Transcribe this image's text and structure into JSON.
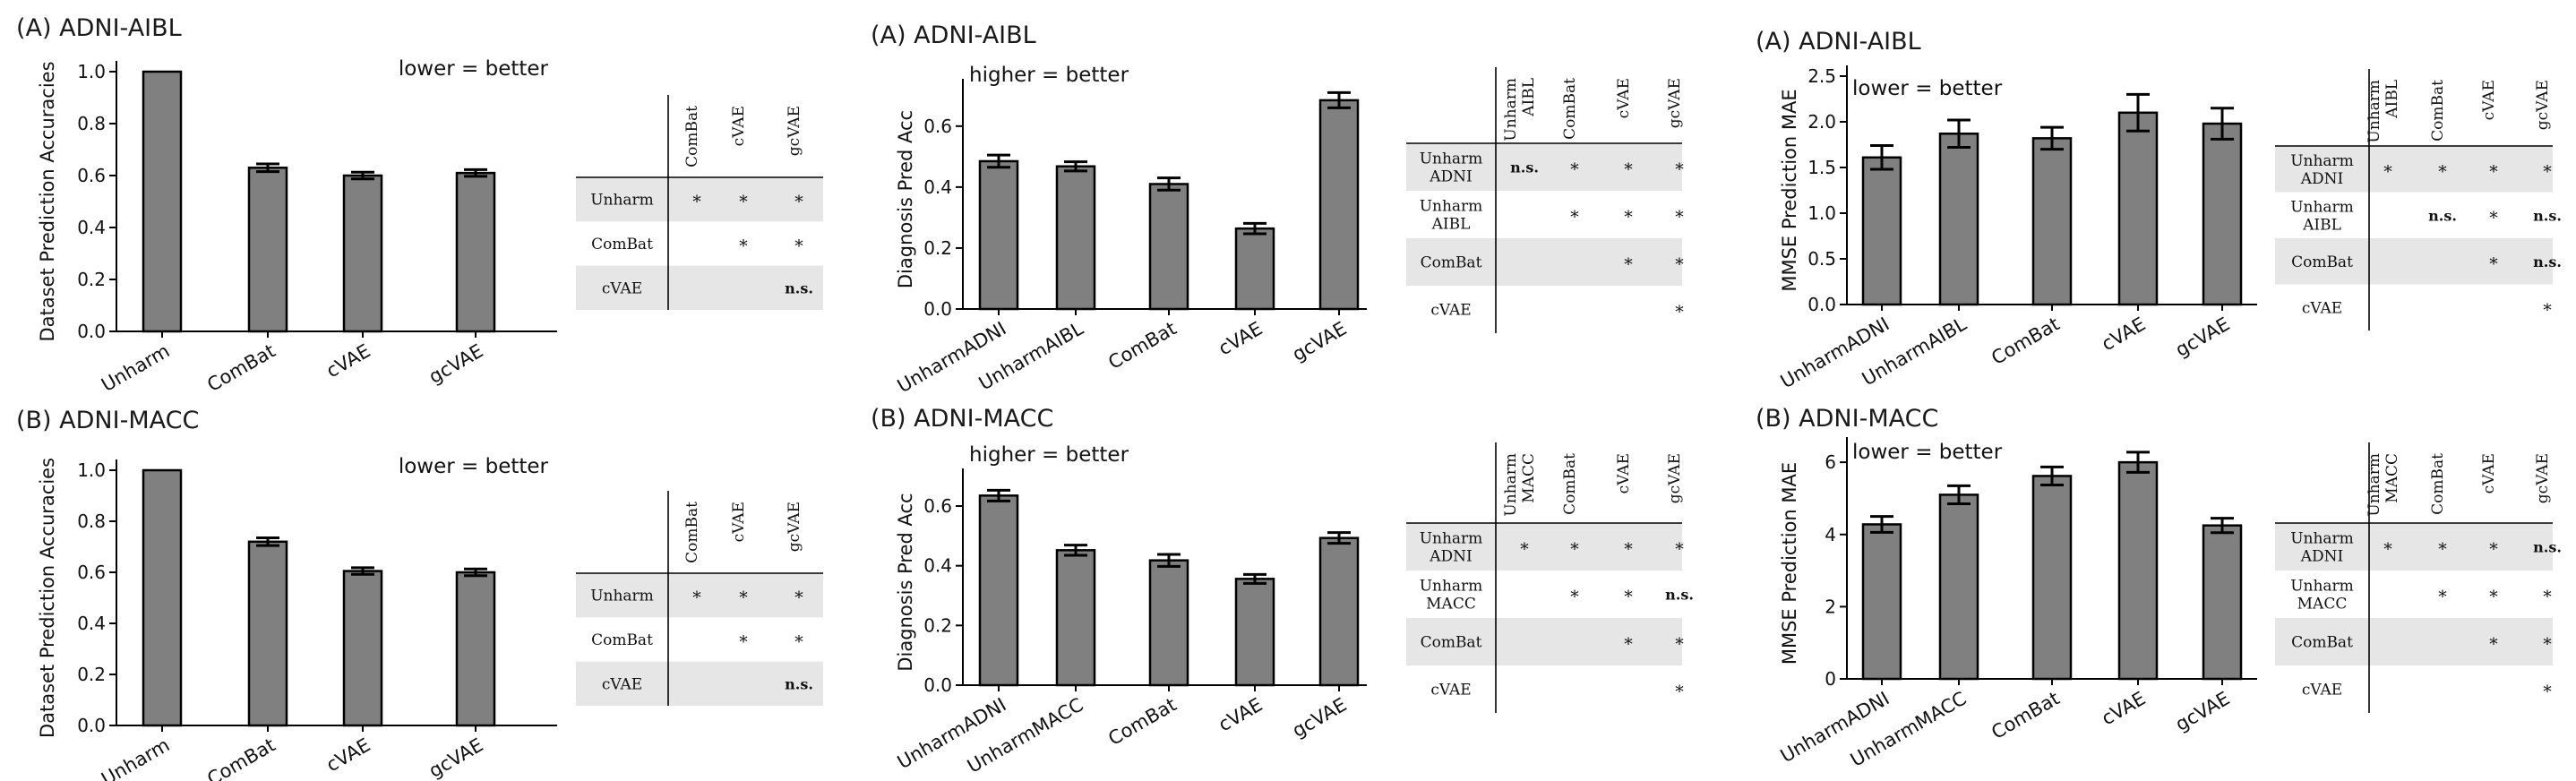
{
  "figure": {
    "background": "#ffffff",
    "bar_color": "#808080",
    "shade_color": "#e6e6e6"
  },
  "chart_data": [
    {
      "type": "bar",
      "title": "(A) ADNI-AIBL",
      "note": "lower = better",
      "ylabel": "Dataset Prediction Accuracies",
      "xlabel": "",
      "ylim": [
        0,
        1.0
      ],
      "yticks": [
        0.0,
        0.2,
        0.4,
        0.6,
        0.8,
        1.0
      ],
      "ytick_labels": [
        "0.0",
        "0.2",
        "0.4",
        "0.6",
        "0.8",
        "1.0"
      ],
      "categories": [
        "Unharm",
        "ComBat",
        "cVAE",
        "gcVAE"
      ],
      "values": [
        1.0,
        0.63,
        0.6,
        0.61
      ],
      "errors": [
        0,
        0.015,
        0.013,
        0.013
      ],
      "table": {
        "columns": [
          "ComBat",
          "cVAE",
          "gcVAE"
        ],
        "rows": [
          {
            "label": [
              "Unharm"
            ],
            "cells": [
              "*",
              "*",
              "*"
            ]
          },
          {
            "label": [
              "ComBat"
            ],
            "cells": [
              "",
              "*",
              "*"
            ]
          },
          {
            "label": [
              "cVAE"
            ],
            "cells": [
              "",
              "",
              "n.s."
            ]
          }
        ]
      }
    },
    {
      "type": "bar",
      "title": "(A) ADNI-AIBL",
      "note": "higher = better",
      "ylabel": "Diagnosis Pred Acc",
      "xlabel": "",
      "ylim": [
        0,
        0.72
      ],
      "yticks": [
        0.0,
        0.2,
        0.4,
        0.6
      ],
      "ytick_labels": [
        "0.0",
        "0.2",
        "0.4",
        "0.6"
      ],
      "categories": [
        "UnharmADNI",
        "UnharmAIBL",
        "ComBat",
        "cVAE",
        "gcVAE"
      ],
      "values": [
        0.485,
        0.468,
        0.41,
        0.264,
        0.685
      ],
      "errors": [
        0.02,
        0.015,
        0.02,
        0.017,
        0.025
      ],
      "table": {
        "columns": [
          "Unharm\nAIBL",
          "ComBat",
          "cVAE",
          "gcVAE"
        ],
        "rows": [
          {
            "label": [
              "Unharm",
              "ADNI"
            ],
            "cells": [
              "n.s.",
              "*",
              "*",
              "*"
            ]
          },
          {
            "label": [
              "Unharm",
              "AIBL"
            ],
            "cells": [
              "",
              "*",
              "*",
              "*"
            ]
          },
          {
            "label": [
              "ComBat"
            ],
            "cells": [
              "",
              "",
              "*",
              "*"
            ]
          },
          {
            "label": [
              "cVAE"
            ],
            "cells": [
              "",
              "",
              "",
              "*"
            ]
          }
        ]
      }
    },
    {
      "type": "bar",
      "title": "(A) ADNI-AIBL",
      "note": "lower = better",
      "ylabel": "MMSE Prediction MAE",
      "xlabel": "",
      "ylim": [
        0,
        2.5
      ],
      "yticks": [
        0.0,
        0.5,
        1.0,
        1.5,
        2.0,
        2.5
      ],
      "ytick_labels": [
        "0.0",
        "0.5",
        "1.0",
        "1.5",
        "2.0",
        "2.5"
      ],
      "categories": [
        "UnharmADNI",
        "UnharmAIBL",
        "ComBat",
        "cVAE",
        "gcVAE"
      ],
      "values": [
        1.61,
        1.87,
        1.82,
        2.1,
        1.98
      ],
      "errors": [
        0.13,
        0.15,
        0.12,
        0.2,
        0.17
      ],
      "table": {
        "columns": [
          "Unharm\nAIBL",
          "ComBat",
          "cVAE",
          "gcVAE"
        ],
        "rows": [
          {
            "label": [
              "Unharm",
              "ADNI"
            ],
            "cells": [
              "*",
              "*",
              "*",
              "*"
            ]
          },
          {
            "label": [
              "Unharm",
              "AIBL"
            ],
            "cells": [
              "",
              "n.s.",
              "*",
              "n.s."
            ]
          },
          {
            "label": [
              "ComBat"
            ],
            "cells": [
              "",
              "",
              "*",
              "n.s."
            ]
          },
          {
            "label": [
              "cVAE"
            ],
            "cells": [
              "",
              "",
              "",
              "*"
            ]
          }
        ]
      }
    },
    {
      "type": "bar",
      "title": "(B) ADNI-MACC",
      "note": "lower = better",
      "ylabel": "Dataset Prediction Accuracies",
      "xlabel": "",
      "ylim": [
        0,
        1.0
      ],
      "yticks": [
        0.0,
        0.2,
        0.4,
        0.6,
        0.8,
        1.0
      ],
      "ytick_labels": [
        "0.0",
        "0.2",
        "0.4",
        "0.6",
        "0.8",
        "1.0"
      ],
      "categories": [
        "Unharm",
        "ComBat",
        "cVAE",
        "gcVAE"
      ],
      "values": [
        1.0,
        0.72,
        0.605,
        0.6
      ],
      "errors": [
        0,
        0.015,
        0.013,
        0.013
      ],
      "table": {
        "columns": [
          "ComBat",
          "cVAE",
          "gcVAE"
        ],
        "rows": [
          {
            "label": [
              "Unharm"
            ],
            "cells": [
              "*",
              "*",
              "*"
            ]
          },
          {
            "label": [
              "ComBat"
            ],
            "cells": [
              "",
              "*",
              "*"
            ]
          },
          {
            "label": [
              "cVAE"
            ],
            "cells": [
              "",
              "",
              "n.s."
            ]
          }
        ]
      }
    },
    {
      "type": "bar",
      "title": "(B) ADNI-MACC",
      "note": "higher = better",
      "ylabel": "Diagnosis Pred Acc",
      "xlabel": "",
      "ylim": [
        0,
        0.69
      ],
      "yticks": [
        0.0,
        0.2,
        0.4,
        0.6
      ],
      "ytick_labels": [
        "0.0",
        "0.2",
        "0.4",
        "0.6"
      ],
      "categories": [
        "UnharmADNI",
        "UnharmMACC",
        "ComBat",
        "cVAE",
        "gcVAE"
      ],
      "values": [
        0.635,
        0.452,
        0.418,
        0.356,
        0.493
      ],
      "errors": [
        0.018,
        0.017,
        0.02,
        0.015,
        0.018
      ],
      "table": {
        "columns": [
          "Unharm\nMACC",
          "ComBat",
          "cVAE",
          "gcVAE"
        ],
        "rows": [
          {
            "label": [
              "Unharm",
              "ADNI"
            ],
            "cells": [
              "*",
              "*",
              "*",
              "*"
            ]
          },
          {
            "label": [
              "Unharm",
              "MACC"
            ],
            "cells": [
              "",
              "*",
              "*",
              "n.s."
            ]
          },
          {
            "label": [
              "ComBat"
            ],
            "cells": [
              "",
              "",
              "*",
              "*"
            ]
          },
          {
            "label": [
              "cVAE"
            ],
            "cells": [
              "",
              "",
              "",
              "*"
            ]
          }
        ]
      }
    },
    {
      "type": "bar",
      "title": "(B) ADNI-MACC",
      "note": "lower = better",
      "ylabel": "MMSE Prediction MAE",
      "xlabel": "",
      "ylim": [
        0,
        6.4
      ],
      "yticks": [
        0,
        2,
        4,
        6
      ],
      "ytick_labels": [
        "0",
        "2",
        "4",
        "6"
      ],
      "categories": [
        "UnharmADNI",
        "UnharmMACC",
        "ComBat",
        "cVAE",
        "gcVAE"
      ],
      "values": [
        4.28,
        5.1,
        5.62,
        6.0,
        4.25
      ],
      "errors": [
        0.22,
        0.25,
        0.25,
        0.28,
        0.2
      ],
      "table": {
        "columns": [
          "Unharm\nMACC",
          "ComBat",
          "cVAE",
          "gcVAE"
        ],
        "rows": [
          {
            "label": [
              "Unharm",
              "ADNI"
            ],
            "cells": [
              "*",
              "*",
              "*",
              "n.s."
            ]
          },
          {
            "label": [
              "Unharm",
              "MACC"
            ],
            "cells": [
              "",
              "*",
              "*",
              "*"
            ]
          },
          {
            "label": [
              "ComBat"
            ],
            "cells": [
              "",
              "",
              "*",
              "*"
            ]
          },
          {
            "label": [
              "cVAE"
            ],
            "cells": [
              "",
              "",
              "",
              "*"
            ]
          }
        ]
      }
    }
  ]
}
